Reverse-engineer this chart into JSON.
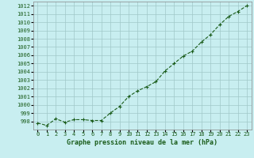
{
  "x": [
    0,
    1,
    2,
    3,
    4,
    5,
    6,
    7,
    8,
    9,
    10,
    11,
    12,
    13,
    14,
    15,
    16,
    17,
    18,
    19,
    20,
    21,
    22,
    23
  ],
  "y": [
    997.8,
    997.5,
    998.3,
    997.9,
    998.2,
    998.2,
    998.1,
    998.1,
    999.0,
    999.8,
    1001.0,
    1001.7,
    1002.2,
    1002.8,
    1004.1,
    1005.0,
    1005.9,
    1006.5,
    1007.6,
    1008.5,
    1009.7,
    1010.7,
    1011.3,
    1012.0
  ],
  "ylim": [
    997.0,
    1012.5
  ],
  "yticks": [
    998,
    999,
    1000,
    1001,
    1002,
    1003,
    1004,
    1005,
    1006,
    1007,
    1008,
    1009,
    1010,
    1011,
    1012
  ],
  "xlim": [
    -0.5,
    23.5
  ],
  "xticks": [
    0,
    1,
    2,
    3,
    4,
    5,
    6,
    7,
    8,
    9,
    10,
    11,
    12,
    13,
    14,
    15,
    16,
    17,
    18,
    19,
    20,
    21,
    22,
    23
  ],
  "line_color": "#1a5c1a",
  "marker": "+",
  "marker_size": 3,
  "line_width": 0.8,
  "bg_color": "#c8eef0",
  "grid_color": "#a0c8c8",
  "xlabel": "Graphe pression niveau de la mer (hPa)",
  "xlabel_fontsize": 6,
  "tick_fontsize": 5,
  "title": ""
}
